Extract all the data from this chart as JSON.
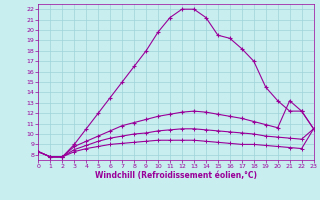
{
  "xlabel": "Windchill (Refroidissement éolien,°C)",
  "xlim": [
    0,
    23
  ],
  "ylim": [
    7.5,
    22.5
  ],
  "xticks": [
    0,
    1,
    2,
    3,
    4,
    5,
    6,
    7,
    8,
    9,
    10,
    11,
    12,
    13,
    14,
    15,
    16,
    17,
    18,
    19,
    20,
    21,
    22,
    23
  ],
  "yticks": [
    8,
    9,
    10,
    11,
    12,
    13,
    14,
    15,
    16,
    17,
    18,
    19,
    20,
    21,
    22
  ],
  "bg_color": "#c8eef0",
  "line_color": "#990099",
  "grid_color": "#a0d4d8",
  "series": [
    [
      8.3,
      7.8,
      7.8,
      9.0,
      10.5,
      12.0,
      13.5,
      15.0,
      16.5,
      18.0,
      19.8,
      21.2,
      22.0,
      22.0,
      21.2,
      19.5,
      19.2,
      18.2,
      17.0,
      14.5,
      13.2,
      12.2,
      12.2,
      10.5
    ],
    [
      8.3,
      7.8,
      7.8,
      8.8,
      9.3,
      9.8,
      10.3,
      10.8,
      11.1,
      11.4,
      11.7,
      11.9,
      12.1,
      12.2,
      12.1,
      11.9,
      11.7,
      11.5,
      11.2,
      10.9,
      10.6,
      13.2,
      12.2,
      10.5
    ],
    [
      8.3,
      7.8,
      7.8,
      8.5,
      8.9,
      9.3,
      9.6,
      9.8,
      10.0,
      10.1,
      10.3,
      10.4,
      10.5,
      10.5,
      10.4,
      10.3,
      10.2,
      10.1,
      10.0,
      9.8,
      9.7,
      9.6,
      9.5,
      10.5
    ],
    [
      8.3,
      7.8,
      7.8,
      8.3,
      8.6,
      8.8,
      9.0,
      9.1,
      9.2,
      9.3,
      9.4,
      9.4,
      9.4,
      9.4,
      9.3,
      9.2,
      9.1,
      9.0,
      9.0,
      8.9,
      8.8,
      8.7,
      8.6,
      10.5
    ]
  ]
}
